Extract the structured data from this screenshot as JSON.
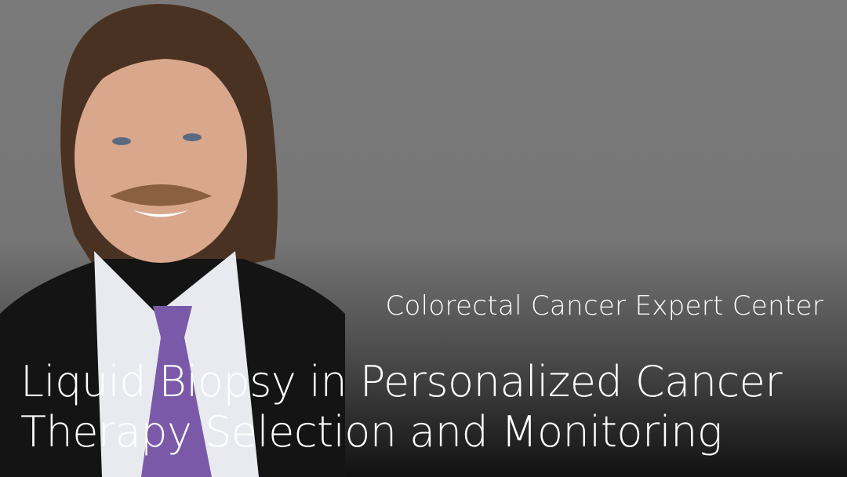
{
  "subtitle": "Colorectal Cancer Expert Center",
  "title_line1": "Liquid Biopsy in Personalized Cancer",
  "title_line2": "Therapy Selection and Monitoring"
}
